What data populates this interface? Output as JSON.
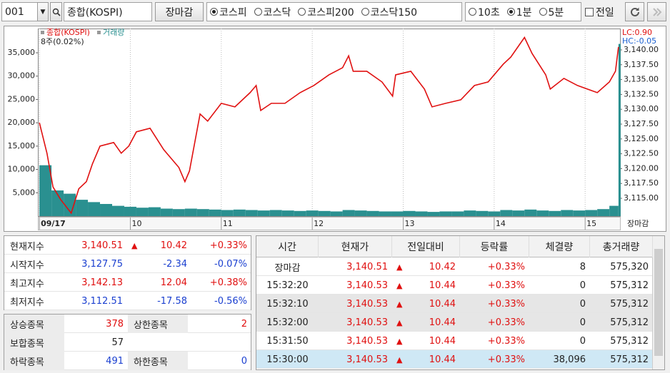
{
  "toolbar": {
    "code": "001",
    "name": "종합(KOSPI)",
    "close_button": "장마감",
    "markets": [
      "코스피",
      "코스닥",
      "코스피200",
      "코스닥150"
    ],
    "market_selected": 0,
    "intervals": [
      "10초",
      "1분",
      "5분"
    ],
    "interval_selected": 1,
    "prev_day": "전일",
    "prev_day_checked": false
  },
  "chart_data": {
    "type": "combo",
    "xlim": [
      -1,
      383
    ],
    "xticks": [
      {
        "value": 0,
        "label": "09/17"
      },
      {
        "value": 60,
        "label": "10"
      },
      {
        "value": 120,
        "label": "11"
      },
      {
        "value": 180,
        "label": "12"
      },
      {
        "value": 240,
        "label": "13"
      },
      {
        "value": 300,
        "label": "14"
      },
      {
        "value": 360,
        "label": "15"
      }
    ],
    "x_end_label": "장마감",
    "ylim": [
      0,
      40200
    ],
    "yticks": [
      {
        "value": 5000,
        "label": "5,000"
      },
      {
        "value": 10000,
        "label": "10,000"
      },
      {
        "value": 15000,
        "label": "15,000"
      },
      {
        "value": 20000,
        "label": "20,000"
      },
      {
        "value": 25000,
        "label": "25,000"
      },
      {
        "value": 30000,
        "label": "30,000"
      },
      {
        "value": 35000,
        "label": "35,000"
      }
    ],
    "y2lim": [
      3112.0,
      3143.6
    ],
    "y2ticks": [
      {
        "value": 3115,
        "label": "3,115.00"
      },
      {
        "value": 3117.5,
        "label": "3,117.50"
      },
      {
        "value": 3120,
        "label": "3,120.00"
      },
      {
        "value": 3122.5,
        "label": "3,122.50"
      },
      {
        "value": 3125,
        "label": "3,125.00"
      },
      {
        "value": 3127.5,
        "label": "3,127.50"
      },
      {
        "value": 3130,
        "label": "3,130.00"
      },
      {
        "value": 3132.5,
        "label": "3,132.50"
      },
      {
        "value": 3135,
        "label": "3,135.00"
      },
      {
        "value": 3137.5,
        "label": "3,137.50"
      },
      {
        "value": 3140,
        "label": "3,140.00"
      }
    ],
    "grid": "x",
    "legend": "top-left",
    "annotations": [
      {
        "text": "8주(0.02%)",
        "color": "#222222"
      },
      {
        "text": "LC:0.90",
        "color": "#e01010"
      },
      {
        "text": "HC:-0.05",
        "color": "#1a5fd0"
      }
    ],
    "series": [
      {
        "name": "종합(KOSPI)",
        "type": "line",
        "axis": "y2",
        "color": "#e01010",
        "x": [
          0,
          5,
          9,
          14,
          21,
          26,
          31,
          35,
          40,
          49,
          54,
          59,
          64,
          73,
          82,
          92,
          96,
          99,
          106,
          111,
          120,
          129,
          139,
          143,
          146,
          153,
          162,
          172,
          181,
          191,
          200,
          204,
          207,
          216,
          226,
          233,
          235,
          245,
          254,
          259,
          268,
          278,
          287,
          296,
          306,
          311,
          320,
          325,
          334,
          337,
          346,
          355,
          368,
          376,
          380,
          382
        ],
        "values": [
          3127.75,
          3122.6,
          3116.9,
          3114.8,
          3112.5,
          3116.6,
          3117.8,
          3120.8,
          3123.8,
          3124.4,
          3122.6,
          3123.8,
          3126.2,
          3126.8,
          3123.2,
          3120.2,
          3117.8,
          3119.6,
          3129.2,
          3128.0,
          3131.0,
          3130.4,
          3132.8,
          3134.0,
          3129.8,
          3131.0,
          3131.0,
          3132.8,
          3134.0,
          3135.8,
          3137.0,
          3139.0,
          3136.4,
          3136.4,
          3134.6,
          3132.2,
          3135.8,
          3136.4,
          3133.4,
          3130.4,
          3131.0,
          3131.6,
          3134.0,
          3134.6,
          3137.6,
          3138.8,
          3142.1,
          3139.4,
          3135.8,
          3133.4,
          3135.2,
          3134.0,
          3132.8,
          3134.6,
          3136.4,
          3140.5
        ]
      },
      {
        "name": "거래량",
        "type": "bar",
        "color": "#2a9090",
        "x": [
          0,
          8,
          16,
          24,
          32,
          40,
          48,
          56,
          64,
          72,
          80,
          88,
          96,
          104,
          112,
          120,
          128,
          136,
          144,
          152,
          160,
          168,
          176,
          184,
          192,
          200,
          208,
          216,
          224,
          232,
          240,
          248,
          256,
          264,
          272,
          280,
          288,
          296,
          304,
          312,
          320,
          328,
          336,
          344,
          352,
          360,
          368,
          376,
          382
        ],
        "values": [
          10900,
          5500,
          4800,
          3500,
          3000,
          2600,
          2200,
          2000,
          1800,
          1900,
          1600,
          1500,
          1600,
          1500,
          1400,
          1300,
          1400,
          1300,
          1200,
          1300,
          1200,
          1100,
          1200,
          1100,
          1000,
          1300,
          1200,
          1100,
          1000,
          1000,
          1100,
          1000,
          900,
          1000,
          1000,
          1200,
          1100,
          1000,
          1300,
          1200,
          1400,
          1200,
          1100,
          1300,
          1200,
          1300,
          1500,
          2200,
          36900
        ]
      }
    ]
  },
  "index_summary": [
    {
      "label": "현재지수",
      "value": "3,140.51",
      "arrow": "▲",
      "change": "10.42",
      "rate": "+0.33%"
    },
    {
      "label": "시작지수",
      "value": "3,127.75",
      "change": "-2.34",
      "rate": "-0.07%"
    },
    {
      "label": "최고지수",
      "value": "3,142.13",
      "change": "12.04",
      "rate": "+0.38%"
    },
    {
      "label": "최저지수",
      "value": "3,112.51",
      "change": "-17.58",
      "rate": "-0.56%"
    }
  ],
  "market_breadth": [
    [
      {
        "label": "상승종목",
        "value": "378",
        "color": "#e01010"
      },
      {
        "label": "상한종목",
        "value": "2",
        "color": "#e01010"
      }
    ],
    [
      {
        "label": "보합종목",
        "value": "57",
        "color": "#222222"
      }
    ],
    [
      {
        "label": "하락종목",
        "value": "491",
        "color": "#1a3fd0"
      },
      {
        "label": "하한종목",
        "value": "0",
        "color": "#1a3fd0"
      }
    ]
  ],
  "trades": {
    "columns": [
      "시간",
      "현재가",
      "전일대비",
      "등락률",
      "체결량",
      "총거래량"
    ],
    "rows": [
      {
        "time": "장마감",
        "price": "3,140.51",
        "arrow": "▲",
        "change": "10.42",
        "rate": "+0.33%",
        "volume": "8",
        "total": "575,320"
      },
      {
        "time": "15:32:20",
        "price": "3,140.53",
        "arrow": "▲",
        "change": "10.44",
        "rate": "+0.33%",
        "volume": "0",
        "total": "575,312"
      },
      {
        "time": "15:32:10",
        "price": "3,140.53",
        "arrow": "▲",
        "change": "10.44",
        "rate": "+0.33%",
        "volume": "0",
        "total": "575,312"
      },
      {
        "time": "15:32:00",
        "price": "3,140.53",
        "arrow": "▲",
        "change": "10.44",
        "rate": "+0.33%",
        "volume": "0",
        "total": "575,312"
      },
      {
        "time": "15:31:50",
        "price": "3,140.53",
        "arrow": "▲",
        "change": "10.44",
        "rate": "+0.33%",
        "volume": "0",
        "total": "575,312"
      },
      {
        "time": "15:30:00",
        "price": "3,140.53",
        "arrow": "▲",
        "change": "10.44",
        "rate": "+0.33%",
        "volume": "38,096",
        "total": "575,312"
      }
    ]
  }
}
